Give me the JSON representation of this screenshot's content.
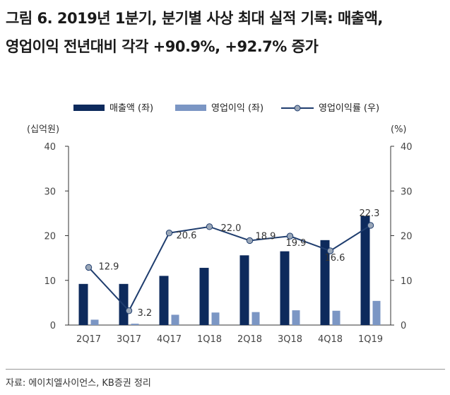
{
  "title": {
    "line1": "그림 6. 2019년 1분기, 분기별 사상 최대 실적 기록: 매출액,",
    "line2": "영업이익 전년대비 각각 +90.9%, +92.7% 증가"
  },
  "source": "자료: 에이치엘사이언스, KB증권 정리",
  "chart_data": {
    "type": "bar",
    "categories": [
      "2Q17",
      "3Q17",
      "4Q17",
      "1Q18",
      "2Q18",
      "3Q18",
      "4Q18",
      "1Q19"
    ],
    "series": [
      {
        "name": "매출액 (좌)",
        "type": "bar",
        "axis": "left",
        "color": "#0d2a5c",
        "values": [
          9.2,
          9.2,
          11.0,
          12.8,
          15.6,
          16.5,
          19.0,
          24.4
        ]
      },
      {
        "name": "영업이익 (좌)",
        "type": "bar",
        "axis": "left",
        "color": "#7b96c4",
        "values": [
          1.2,
          0.3,
          2.3,
          2.8,
          2.9,
          3.3,
          3.2,
          5.4
        ]
      },
      {
        "name": "영업이익률 (우)",
        "type": "line",
        "axis": "right",
        "color": "#1f3d6e",
        "marker_color": "#9aa7b8",
        "values": [
          12.9,
          3.2,
          20.6,
          22.0,
          18.9,
          19.9,
          16.6,
          22.3
        ],
        "labels": [
          "12.9",
          "3.2",
          "20.6",
          "22.0",
          "18.9",
          "19.9",
          "16.6",
          "22.3"
        ]
      }
    ],
    "y_left": {
      "unit": "(십억원)",
      "ticks": [
        "0",
        "10",
        "20",
        "30",
        "40"
      ],
      "range": [
        0,
        40
      ]
    },
    "y_right": {
      "unit": "(%)",
      "ticks": [
        "0",
        "10",
        "20",
        "30",
        "40"
      ],
      "range": [
        0,
        40
      ]
    },
    "legend_position": "top",
    "grid": false
  }
}
